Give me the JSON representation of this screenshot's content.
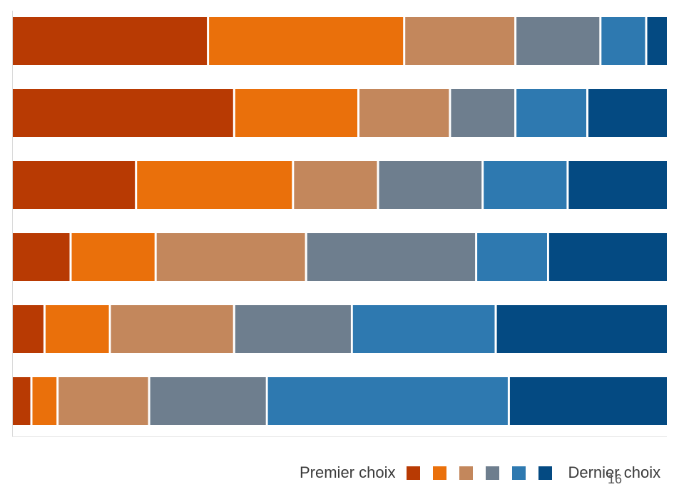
{
  "chart_data": {
    "type": "bar",
    "orientation": "horizontal",
    "stacked": true,
    "categories": [
      "",
      "",
      "",
      "",
      "",
      ""
    ],
    "series": [
      {
        "name": "Premier choix",
        "color": "#B83A03",
        "values": [
          30,
          34,
          19,
          9,
          5,
          3
        ]
      },
      {
        "name": "",
        "color": "#EA700B",
        "values": [
          30,
          19,
          24,
          13,
          10,
          4
        ]
      },
      {
        "name": "",
        "color": "#C3875C",
        "values": [
          17,
          14,
          13,
          23,
          19,
          14
        ]
      },
      {
        "name": "",
        "color": "#6E7E8E",
        "values": [
          13,
          10,
          16,
          26,
          18,
          18
        ]
      },
      {
        "name": "",
        "color": "#2E79B0",
        "values": [
          7,
          11,
          13,
          11,
          22,
          37
        ]
      },
      {
        "name": "Dernier choix",
        "color": "#044A82",
        "values": [
          3,
          12,
          15,
          18,
          26,
          24
        ]
      }
    ],
    "xlim": [
      0,
      100
    ],
    "grid": false,
    "legend_position": "bottom-right"
  },
  "legend": {
    "start_label": "Premier choix",
    "end_label": "Dernier choix"
  },
  "page_number": "16"
}
